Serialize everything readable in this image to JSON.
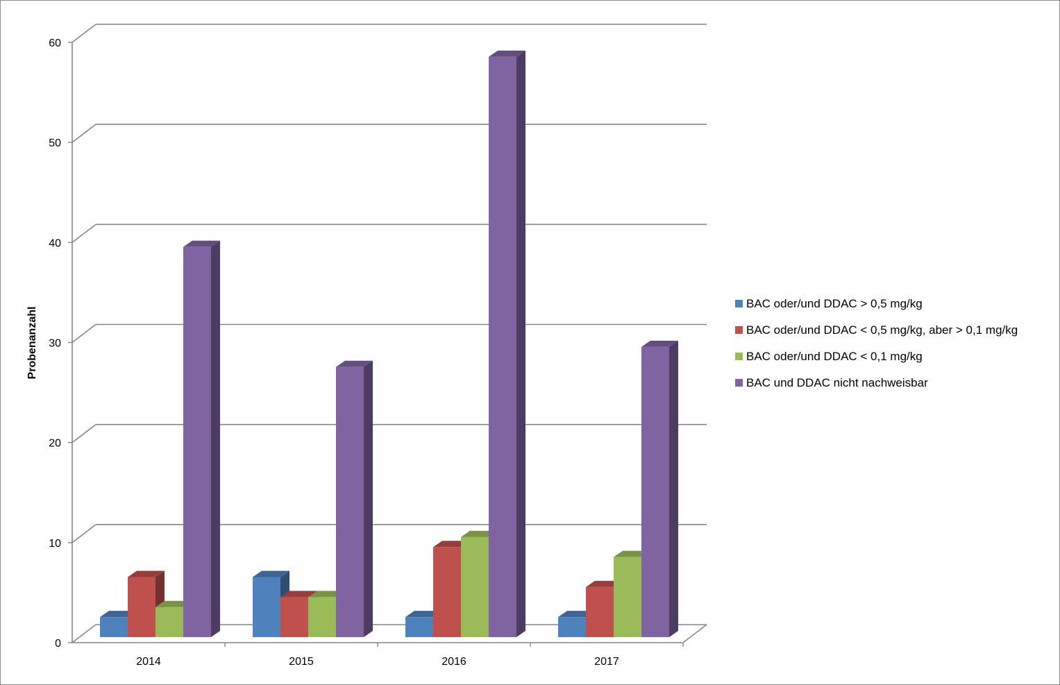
{
  "chart_data": {
    "type": "bar",
    "variant": "3d-clustered-column",
    "title": "",
    "xlabel": "",
    "ylabel": "Probenanzahl",
    "ylim": [
      0,
      60
    ],
    "yticks": [
      "0",
      "10",
      "20",
      "30",
      "40",
      "50",
      "60"
    ],
    "grid": true,
    "legend_position": "right",
    "categories": [
      "2014",
      "2015",
      "2016",
      "2017"
    ],
    "series": [
      {
        "name": "BAC oder/und DDAC > 0,5 mg/kg",
        "color": "#4F81BD",
        "values": [
          2,
          6,
          2,
          2
        ]
      },
      {
        "name": "BAC oder/und DDAC < 0,5 mg/kg, aber > 0,1 mg/kg",
        "color": "#C0504D",
        "values": [
          6,
          4,
          9,
          5
        ]
      },
      {
        "name": "BAC oder/und DDAC < 0,1 mg/kg",
        "color": "#9BBB59",
        "values": [
          3,
          4,
          10,
          8
        ]
      },
      {
        "name": "BAC und DDAC nicht nachweisbar",
        "color": "#8064A2",
        "values": [
          39,
          27,
          58,
          29
        ]
      }
    ]
  }
}
